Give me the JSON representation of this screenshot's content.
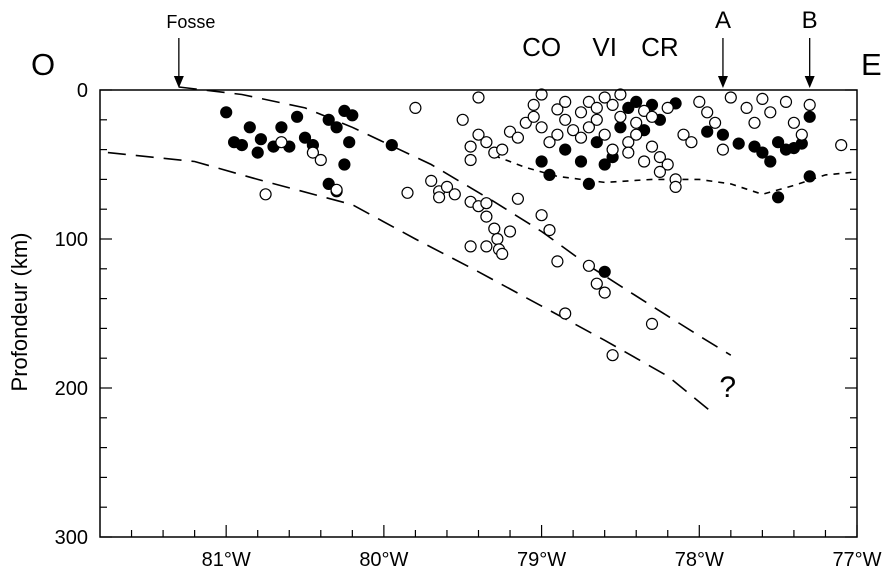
{
  "chart_data": {
    "type": "scatter",
    "title": "",
    "xlabel": "",
    "ylabel": "Profondeur (km)",
    "xlim": [
      -81.8,
      -77.0
    ],
    "ylim": [
      300,
      0
    ],
    "x_ticks": [
      {
        "value": -81,
        "label": "81°W"
      },
      {
        "value": -80,
        "label": "80°W"
      },
      {
        "value": -79,
        "label": "79°W"
      },
      {
        "value": -78,
        "label": "78°W"
      },
      {
        "value": -77,
        "label": "77°W"
      }
    ],
    "x_minor_step": 0.2,
    "y_ticks": [
      {
        "value": 0,
        "label": "0"
      },
      {
        "value": 100,
        "label": "100"
      },
      {
        "value": 200,
        "label": "200"
      },
      {
        "value": 300,
        "label": "300"
      }
    ],
    "y_minor_step": 20,
    "grid": false,
    "orientation_labels": {
      "left": "O",
      "right": "E"
    },
    "markers": [
      {
        "label": "Fosse",
        "x": -81.3,
        "arrow": true
      },
      {
        "label": "CO",
        "x": -79.0,
        "arrow": false
      },
      {
        "label": "VI",
        "x": -78.6,
        "arrow": false
      },
      {
        "label": "CR",
        "x": -78.25,
        "arrow": false
      },
      {
        "label": "A",
        "x": -77.85,
        "arrow": true
      },
      {
        "label": "B",
        "x": -77.3,
        "arrow": true
      }
    ],
    "annotations": [
      {
        "text": "?",
        "x": -77.82,
        "y": 198
      }
    ],
    "lines": [
      {
        "style": "dashed",
        "points": [
          [
            -81.3,
            -2
          ],
          [
            -80.9,
            3
          ],
          [
            -80.5,
            12
          ],
          [
            -80.2,
            25
          ],
          [
            -79.7,
            50
          ],
          [
            -79.3,
            75
          ],
          [
            -79.0,
            95
          ],
          [
            -78.7,
            118
          ],
          [
            -78.3,
            145
          ],
          [
            -78.0,
            165
          ],
          [
            -77.8,
            178
          ]
        ]
      },
      {
        "style": "dashed",
        "points": [
          [
            -81.75,
            42
          ],
          [
            -81.2,
            48
          ],
          [
            -80.8,
            60
          ],
          [
            -80.2,
            77
          ],
          [
            -79.8,
            100
          ],
          [
            -79.4,
            122
          ],
          [
            -79.0,
            145
          ],
          [
            -78.6,
            168
          ],
          [
            -78.2,
            192
          ],
          [
            -77.9,
            218
          ]
        ]
      },
      {
        "style": "dotted",
        "points": [
          [
            -79.3,
            44
          ],
          [
            -79.1,
            52
          ],
          [
            -78.9,
            58
          ],
          [
            -78.6,
            62
          ],
          [
            -78.3,
            60
          ],
          [
            -78.0,
            60
          ],
          [
            -77.8,
            63
          ],
          [
            -77.6,
            70
          ],
          [
            -77.4,
            64
          ],
          [
            -77.2,
            57
          ],
          [
            -77.0,
            55
          ]
        ]
      }
    ],
    "series": [
      {
        "marker": "filled",
        "points": [
          [
            -81.0,
            15
          ],
          [
            -80.95,
            35
          ],
          [
            -80.9,
            37
          ],
          [
            -80.85,
            25
          ],
          [
            -80.8,
            42
          ],
          [
            -80.78,
            33
          ],
          [
            -80.7,
            38
          ],
          [
            -80.65,
            25
          ],
          [
            -80.6,
            38
          ],
          [
            -80.55,
            18
          ],
          [
            -80.5,
            32
          ],
          [
            -80.45,
            37
          ],
          [
            -80.35,
            20
          ],
          [
            -80.3,
            25
          ],
          [
            -80.25,
            14
          ],
          [
            -80.22,
            35
          ],
          [
            -80.25,
            50
          ],
          [
            -80.2,
            17
          ],
          [
            -80.35,
            63
          ],
          [
            -80.3,
            68
          ],
          [
            -79.95,
            37
          ],
          [
            -78.95,
            57
          ],
          [
            -79.0,
            48
          ],
          [
            -78.85,
            40
          ],
          [
            -78.75,
            48
          ],
          [
            -78.7,
            63
          ],
          [
            -78.65,
            35
          ],
          [
            -78.6,
            50
          ],
          [
            -78.55,
            45
          ],
          [
            -78.5,
            25
          ],
          [
            -78.45,
            12
          ],
          [
            -78.4,
            8
          ],
          [
            -78.35,
            27
          ],
          [
            -78.3,
            10
          ],
          [
            -78.25,
            20
          ],
          [
            -78.6,
            122
          ],
          [
            -77.95,
            28
          ],
          [
            -77.85,
            30
          ],
          [
            -77.75,
            36
          ],
          [
            -77.65,
            38
          ],
          [
            -77.6,
            42
          ],
          [
            -77.55,
            48
          ],
          [
            -77.5,
            35
          ],
          [
            -77.45,
            40
          ],
          [
            -77.4,
            39
          ],
          [
            -77.35,
            36
          ],
          [
            -77.3,
            58
          ],
          [
            -77.5,
            72
          ],
          [
            -77.3,
            18
          ],
          [
            -78.15,
            9
          ]
        ]
      },
      {
        "marker": "open",
        "points": [
          [
            -80.45,
            42
          ],
          [
            -80.4,
            47
          ],
          [
            -80.3,
            67
          ],
          [
            -80.65,
            35
          ],
          [
            -80.75,
            70
          ],
          [
            -79.8,
            12
          ],
          [
            -79.85,
            69
          ],
          [
            -79.65,
            68
          ],
          [
            -79.7,
            61
          ],
          [
            -79.65,
            72
          ],
          [
            -79.6,
            65
          ],
          [
            -79.55,
            70
          ],
          [
            -79.45,
            75
          ],
          [
            -79.4,
            78
          ],
          [
            -79.35,
            76
          ],
          [
            -79.35,
            85
          ],
          [
            -79.3,
            93
          ],
          [
            -79.28,
            100
          ],
          [
            -79.27,
            107
          ],
          [
            -79.25,
            110
          ],
          [
            -79.2,
            95
          ],
          [
            -79.15,
            73
          ],
          [
            -79.35,
            105
          ],
          [
            -79.45,
            105
          ],
          [
            -79.5,
            20
          ],
          [
            -79.45,
            47
          ],
          [
            -79.45,
            38
          ],
          [
            -79.4,
            30
          ],
          [
            -79.35,
            35
          ],
          [
            -79.3,
            42
          ],
          [
            -79.25,
            40
          ],
          [
            -79.2,
            28
          ],
          [
            -79.15,
            32
          ],
          [
            -79.4,
            5
          ],
          [
            -79.1,
            22
          ],
          [
            -79.05,
            18
          ],
          [
            -79.0,
            25
          ],
          [
            -78.95,
            35
          ],
          [
            -78.9,
            30
          ],
          [
            -79.05,
            10
          ],
          [
            -79.0,
            3
          ],
          [
            -78.9,
            13
          ],
          [
            -78.85,
            20
          ],
          [
            -78.8,
            27
          ],
          [
            -78.75,
            15
          ],
          [
            -78.7,
            8
          ],
          [
            -78.65,
            20
          ],
          [
            -78.6,
            30
          ],
          [
            -78.55,
            10
          ],
          [
            -78.5,
            18
          ],
          [
            -78.45,
            35
          ],
          [
            -78.4,
            22
          ],
          [
            -78.35,
            14
          ],
          [
            -78.3,
            38
          ],
          [
            -78.25,
            45
          ],
          [
            -78.2,
            50
          ],
          [
            -78.15,
            60
          ],
          [
            -78.1,
            30
          ],
          [
            -78.05,
            35
          ],
          [
            -78.0,
            8
          ],
          [
            -77.95,
            15
          ],
          [
            -77.9,
            22
          ],
          [
            -77.85,
            40
          ],
          [
            -77.8,
            5
          ],
          [
            -77.7,
            12
          ],
          [
            -77.65,
            22
          ],
          [
            -77.6,
            6
          ],
          [
            -77.55,
            15
          ],
          [
            -77.45,
            8
          ],
          [
            -77.4,
            22
          ],
          [
            -77.35,
            30
          ],
          [
            -77.3,
            10
          ],
          [
            -77.1,
            37
          ],
          [
            -79.0,
            84
          ],
          [
            -78.95,
            94
          ],
          [
            -78.9,
            115
          ],
          [
            -78.7,
            118
          ],
          [
            -78.65,
            130
          ],
          [
            -78.6,
            136
          ],
          [
            -78.85,
            150
          ],
          [
            -78.55,
            178
          ],
          [
            -78.3,
            157
          ],
          [
            -78.7,
            25
          ],
          [
            -78.55,
            40
          ],
          [
            -78.45,
            42
          ],
          [
            -78.35,
            48
          ],
          [
            -78.25,
            55
          ],
          [
            -78.15,
            65
          ],
          [
            -78.75,
            32
          ],
          [
            -78.6,
            5
          ],
          [
            -78.5,
            3
          ],
          [
            -78.4,
            30
          ],
          [
            -78.3,
            18
          ],
          [
            -78.2,
            12
          ],
          [
            -78.85,
            8
          ],
          [
            -78.65,
            12
          ]
        ]
      }
    ]
  }
}
